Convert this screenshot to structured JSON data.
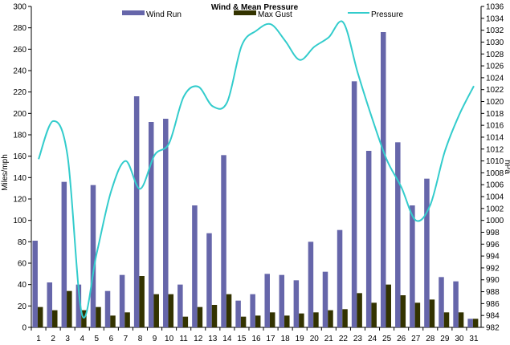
{
  "chart_data": {
    "type": "bar",
    "title": "Wind & Mean Pressure",
    "ylabel_left": "Miles/mph",
    "ylabel_right": "hPa",
    "categories": [
      "1",
      "2",
      "3",
      "4",
      "5",
      "6",
      "7",
      "8",
      "9",
      "10",
      "11",
      "12",
      "13",
      "14",
      "15",
      "16",
      "17",
      "18",
      "19",
      "20",
      "21",
      "22",
      "23",
      "24",
      "25",
      "26",
      "27",
      "28",
      "29",
      "30",
      "31"
    ],
    "ylim_left": [
      0,
      300
    ],
    "yticks_left": [
      0,
      20,
      40,
      60,
      80,
      100,
      120,
      140,
      160,
      180,
      200,
      220,
      240,
      260,
      280,
      300
    ],
    "ylim_right": [
      982,
      1036
    ],
    "yticks_right": [
      982,
      984,
      986,
      988,
      990,
      992,
      994,
      996,
      998,
      1000,
      1002,
      1004,
      1006,
      1008,
      1010,
      1012,
      1014,
      1016,
      1018,
      1020,
      1022,
      1024,
      1026,
      1028,
      1030,
      1032,
      1034,
      1036
    ],
    "legend_position": "top",
    "grid": false,
    "series": [
      {
        "name": "Wind Run",
        "type": "bar",
        "axis": "left",
        "color": "#6666aa",
        "values": [
          81,
          42,
          136,
          40,
          133,
          34,
          49,
          216,
          192,
          195,
          40,
          114,
          88,
          161,
          25,
          31,
          50,
          49,
          44,
          80,
          52,
          91,
          230,
          165,
          276,
          173,
          114,
          139,
          47,
          43,
          8
        ]
      },
      {
        "name": "Max Gust",
        "type": "bar",
        "axis": "left",
        "color": "#333300",
        "values": [
          19,
          16,
          34,
          16,
          19,
          11,
          14,
          48,
          31,
          31,
          10,
          19,
          21,
          31,
          10,
          11,
          14,
          11,
          13,
          14,
          16,
          17,
          32,
          23,
          40,
          30,
          23,
          26,
          14,
          14,
          8
        ]
      },
      {
        "name": "Pressure",
        "type": "line",
        "axis": "right",
        "color": "#33cccc",
        "values": [
          1010.3,
          1016.7,
          1010.8,
          984.1,
          994.4,
          1004.9,
          1010.0,
          1005.3,
          1011.0,
          1013.0,
          1020.8,
          1022.5,
          1019.2,
          1019.9,
          1029.4,
          1031.9,
          1033.0,
          1030.2,
          1027.0,
          1029.2,
          1030.8,
          1033.3,
          1024.8,
          1017.1,
          1010.2,
          1005.6,
          1000.0,
          1002.6,
          1011.6,
          1017.8,
          1022.6
        ]
      }
    ]
  }
}
